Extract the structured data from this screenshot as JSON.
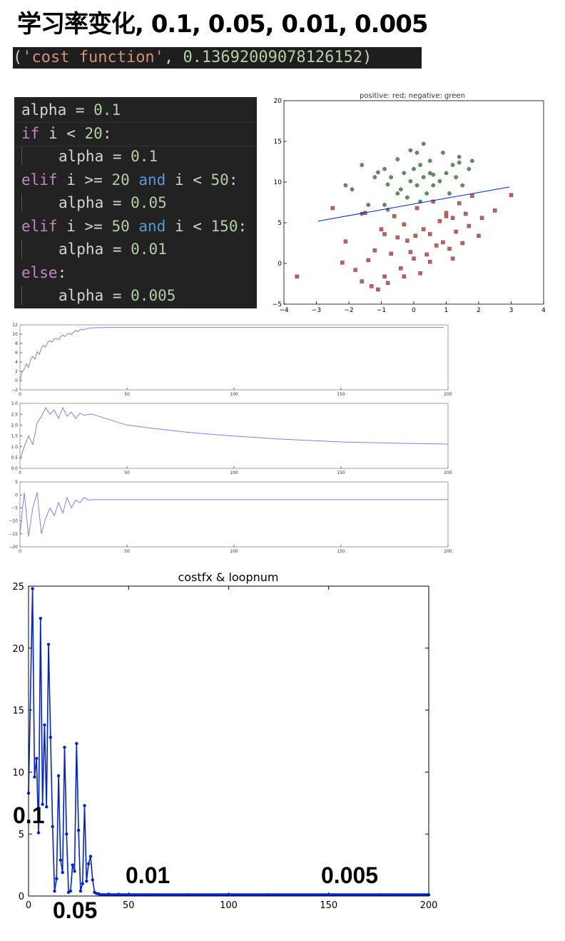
{
  "title": "学习率变化, 0.1, 0.05, 0.01, 0.005",
  "result_line": {
    "open": "(",
    "str": "'cost function'",
    "sep": ", ",
    "val": "0.13692009078126152",
    "close": ")"
  },
  "code": {
    "l1": {
      "a": "alpha = ",
      "b": "0.1"
    },
    "l2": {
      "kw": "if",
      "a": " i < ",
      "n": "20",
      "c": ":"
    },
    "l3": {
      "a": "alpha = ",
      "b": "0.1"
    },
    "l4": {
      "kw": "elif",
      "a": " i >= ",
      "n1": "20",
      "and": " and",
      "b": " i < ",
      "n2": "50",
      "c": ":"
    },
    "l5": {
      "a": "alpha = ",
      "b": "0.05"
    },
    "l6": {
      "kw": "elif",
      "a": " i >= ",
      "n1": "50",
      "and": " and",
      "b": " i < ",
      "n2": "150",
      "c": ":"
    },
    "l7": {
      "a": "alpha = ",
      "b": "0.01"
    },
    "l8": {
      "kw": "else",
      "c": ":"
    },
    "l9": {
      "a": "alpha = ",
      "b": "0.005"
    }
  },
  "colors": {
    "line": "#0022dd",
    "weights": "#8080f0",
    "pos": "#c06060",
    "neg": "#609060"
  },
  "chart_data": [
    {
      "type": "scatter",
      "title": "positive: red; negative: green",
      "xlim": [
        -4,
        4
      ],
      "ylim": [
        -5,
        20
      ],
      "xticks": [
        -4,
        -3,
        -2,
        -1,
        0,
        1,
        2,
        3,
        4
      ],
      "yticks": [
        -5,
        0,
        5,
        10,
        15,
        20
      ],
      "series": [
        {
          "class": "positive",
          "color": "red",
          "points": [
            [
              -3.6,
              -1.6
            ],
            [
              -2.5,
              6.8
            ],
            [
              -2.1,
              2.7
            ],
            [
              -2.2,
              0.1
            ],
            [
              -1.8,
              -0.8
            ],
            [
              -1.6,
              -2.2
            ],
            [
              -1.5,
              6.2
            ],
            [
              -1.4,
              0.4
            ],
            [
              -1.3,
              -2.8
            ],
            [
              -1.2,
              1.6
            ],
            [
              -1.1,
              -3.2
            ],
            [
              -1,
              4.2
            ],
            [
              -0.9,
              -1.6
            ],
            [
              -0.9,
              3.6
            ],
            [
              -0.8,
              -2.4
            ],
            [
              -0.7,
              1.2
            ],
            [
              -0.6,
              5.8
            ],
            [
              -0.5,
              3.2
            ],
            [
              -0.4,
              -0.6
            ],
            [
              -0.3,
              4.8
            ],
            [
              -0.2,
              2.8
            ],
            [
              -0.1,
              1.4
            ],
            [
              0,
              0.6
            ],
            [
              0.05,
              3.4
            ],
            [
              0.1,
              6.8
            ],
            [
              0.2,
              -1.2
            ],
            [
              0.3,
              4.2
            ],
            [
              0.4,
              1.1
            ],
            [
              0.5,
              3.6
            ],
            [
              0.6,
              7.6
            ],
            [
              0.7,
              2.2
            ],
            [
              0.8,
              5.2
            ],
            [
              0.9,
              2.6
            ],
            [
              1,
              6.2
            ],
            [
              1.1,
              1.8
            ],
            [
              1.2,
              5.6
            ],
            [
              1.2,
              0.6
            ],
            [
              1.3,
              3.9
            ],
            [
              1.4,
              7.4
            ],
            [
              1.5,
              2.5
            ],
            [
              1.6,
              6.1
            ],
            [
              1.7,
              4.6
            ],
            [
              1.8,
              8.3
            ],
            [
              2,
              3.4
            ],
            [
              2.1,
              5.6
            ],
            [
              2.5,
              6.5
            ],
            [
              3,
              8.4
            ],
            [
              0.5,
              0.2
            ],
            [
              -0.3,
              -1.6
            ],
            [
              1.0,
              5.8
            ]
          ]
        },
        {
          "class": "negative",
          "color": "green",
          "points": [
            [
              -2.1,
              9.6
            ],
            [
              -1.9,
              9.1
            ],
            [
              -1.6,
              12.1
            ],
            [
              -1.6,
              6.1
            ],
            [
              -1.4,
              7.2
            ],
            [
              -1.2,
              10.6
            ],
            [
              -1.1,
              11.2
            ],
            [
              -0.9,
              11.6
            ],
            [
              -0.8,
              9.7
            ],
            [
              -0.7,
              10.6
            ],
            [
              -0.5,
              8.6
            ],
            [
              -0.5,
              12.8
            ],
            [
              -0.4,
              9.1
            ],
            [
              -0.3,
              11.1
            ],
            [
              -0.2,
              8.1
            ],
            [
              -0.1,
              10.1
            ],
            [
              -0.1,
              13.9
            ],
            [
              0,
              11.6
            ],
            [
              0.1,
              9.6
            ],
            [
              0.2,
              7.6
            ],
            [
              0.2,
              12.1
            ],
            [
              0.3,
              10.6
            ],
            [
              0.3,
              14.7
            ],
            [
              0.4,
              8.6
            ],
            [
              0.5,
              11.1
            ],
            [
              0.5,
              12.6
            ],
            [
              0.6,
              9.6
            ],
            [
              0.8,
              10.1
            ],
            [
              0.9,
              13.6
            ],
            [
              1,
              11.1
            ],
            [
              1.1,
              8.6
            ],
            [
              1.2,
              12.1
            ],
            [
              1.3,
              10.6
            ],
            [
              1.4,
              13.1
            ],
            [
              1.5,
              9.6
            ],
            [
              1.7,
              11.6
            ],
            [
              1.8,
              12.6
            ],
            [
              0.1,
              13.6
            ],
            [
              -0.9,
              7.2
            ],
            [
              -0.8,
              6.6
            ],
            [
              0.6,
              10.9
            ],
            [
              1.4,
              12.4
            ]
          ]
        }
      ],
      "boundary": {
        "x": [
          -2.95,
          2.95
        ],
        "y": [
          5.2,
          9.4
        ]
      }
    },
    {
      "type": "line",
      "name": "weight_0",
      "xlim": [
        0,
        200
      ],
      "ylim": [
        -2,
        12
      ],
      "xticks": [
        0,
        50,
        100,
        150,
        200
      ],
      "yticks": [
        -2,
        0,
        2,
        4,
        6,
        8,
        10,
        12
      ],
      "x_step": 1,
      "values": [
        0,
        1.8,
        2.5,
        3.6,
        2.8,
        4.6,
        5.2,
        4.6,
        6.2,
        5.6,
        7.0,
        7.6,
        7.2,
        8.2,
        8.6,
        8.3,
        9.0,
        9.1,
        8.8,
        9.4,
        9.8,
        9.5,
        10.0,
        10.2,
        9.9,
        10.4,
        10.8,
        10.5,
        10.9,
        11.1,
        10.9,
        11.2,
        11.3,
        11.3,
        11.35,
        11.4,
        11.4,
        11.4,
        11.4,
        11.4,
        11.4,
        11.45,
        11.45,
        11.45,
        11.45,
        11.45,
        11.45,
        11.45,
        11.45,
        11.45,
        11.45,
        11.45,
        11.45,
        11.45,
        11.45,
        11.45,
        11.45,
        11.45,
        11.45,
        11.45,
        11.45,
        11.45,
        11.45,
        11.45,
        11.45,
        11.45,
        11.45,
        11.45,
        11.45,
        11.45,
        11.45,
        11.45,
        11.45,
        11.45,
        11.45,
        11.45,
        11.45,
        11.45,
        11.45,
        11.45,
        11.45,
        11.45,
        11.45,
        11.45,
        11.45,
        11.45,
        11.45,
        11.45,
        11.45,
        11.45,
        11.45,
        11.45,
        11.45,
        11.45,
        11.45,
        11.45,
        11.45,
        11.45,
        11.45,
        11.45,
        11.45,
        11.45,
        11.45,
        11.45,
        11.45,
        11.45,
        11.45,
        11.45,
        11.45,
        11.45,
        11.45,
        11.45,
        11.45,
        11.45,
        11.45,
        11.45,
        11.45,
        11.45,
        11.45,
        11.45,
        11.45,
        11.45,
        11.45,
        11.45,
        11.45,
        11.45,
        11.45,
        11.45,
        11.45,
        11.45,
        11.45,
        11.45,
        11.45,
        11.45,
        11.45,
        11.45,
        11.45,
        11.45,
        11.45,
        11.45,
        11.45,
        11.45,
        11.45,
        11.45,
        11.45,
        11.45,
        11.45,
        11.45,
        11.45,
        11.45,
        11.45,
        11.45,
        11.45,
        11.45,
        11.45,
        11.45,
        11.45,
        11.45,
        11.45,
        11.45,
        11.45,
        11.45,
        11.45,
        11.45,
        11.45,
        11.45,
        11.45,
        11.45,
        11.45,
        11.45,
        11.45,
        11.45,
        11.45,
        11.45,
        11.45,
        11.45,
        11.45,
        11.45,
        11.45,
        11.45,
        11.45,
        11.45,
        11.45,
        11.45,
        11.45,
        11.45,
        11.45,
        11.45,
        11.45,
        11.45,
        11.45,
        11.45,
        11.45,
        11.45,
        11.45,
        11.45,
        11.45,
        11.45,
        11.45
      ]
    },
    {
      "type": "line",
      "name": "weight_1",
      "xlim": [
        0,
        200
      ],
      "ylim": [
        0,
        3
      ],
      "xticks": [
        0,
        50,
        100,
        150,
        200
      ],
      "yticks": [
        0.0,
        0.5,
        1.0,
        1.5,
        2.0,
        2.5,
        3.0
      ],
      "x": [
        0,
        2,
        4,
        6,
        8,
        10,
        12,
        14,
        16,
        18,
        20,
        22,
        24,
        26,
        28,
        30,
        32,
        34,
        40,
        50,
        60,
        80,
        100,
        120,
        150,
        175,
        200
      ],
      "values": [
        0.4,
        1.0,
        1.5,
        1.1,
        2.1,
        2.4,
        2.8,
        2.5,
        2.7,
        2.3,
        2.8,
        2.4,
        2.6,
        2.3,
        2.55,
        2.45,
        2.5,
        2.5,
        2.3,
        2.0,
        1.87,
        1.65,
        1.49,
        1.36,
        1.22,
        1.16,
        1.12
      ]
    },
    {
      "type": "line",
      "name": "weight_2",
      "xlim": [
        0,
        200
      ],
      "ylim": [
        -20,
        5
      ],
      "xticks": [
        0,
        50,
        100,
        150,
        200
      ],
      "yticks": [
        -20,
        -15,
        -10,
        -5,
        0,
        5
      ],
      "x": [
        0,
        2,
        4,
        6,
        8,
        10,
        12,
        14,
        16,
        18,
        20,
        22,
        24,
        26,
        28,
        30,
        32,
        34,
        200
      ],
      "values": [
        -15,
        1,
        -16,
        -5,
        1,
        -15,
        -9,
        -5,
        -8,
        -3,
        -7,
        -1,
        -5,
        -2,
        -3,
        -1,
        -2,
        -1.8,
        -1.8
      ]
    },
    {
      "type": "line",
      "title": "costfx & loopnum",
      "xlim": [
        0,
        200
      ],
      "ylim": [
        0,
        25
      ],
      "xticks": [
        0,
        50,
        100,
        150,
        200
      ],
      "yticks": [
        0,
        5,
        10,
        15,
        20,
        25
      ],
      "x": [
        0,
        2,
        3,
        4,
        5,
        6,
        7,
        8,
        9,
        10,
        11,
        12,
        13,
        14,
        15,
        16,
        17,
        18,
        19,
        20,
        21,
        22,
        23,
        24,
        25,
        26,
        27,
        28,
        29,
        30,
        31,
        32,
        33,
        34,
        35,
        40,
        45,
        50,
        60,
        80,
        100,
        120,
        150,
        175,
        200
      ],
      "values": [
        8.3,
        24.8,
        9.6,
        11.1,
        5.1,
        22.4,
        7.4,
        13.8,
        7.2,
        20.3,
        12.8,
        5.6,
        0.4,
        1.4,
        9.7,
        2.9,
        1.9,
        12,
        5,
        0.3,
        0.4,
        2.5,
        2,
        12.3,
        5.3,
        0.4,
        1,
        7.3,
        1.2,
        2.6,
        3.2,
        1.3,
        0.3,
        0.2,
        0.18,
        0.15,
        0.14,
        0.12,
        0.1,
        0.1,
        0.1,
        0.1,
        0.1,
        0.1,
        0.1
      ],
      "annotations": [
        "0.1",
        "0.05",
        "0.01",
        "0.005"
      ]
    }
  ]
}
